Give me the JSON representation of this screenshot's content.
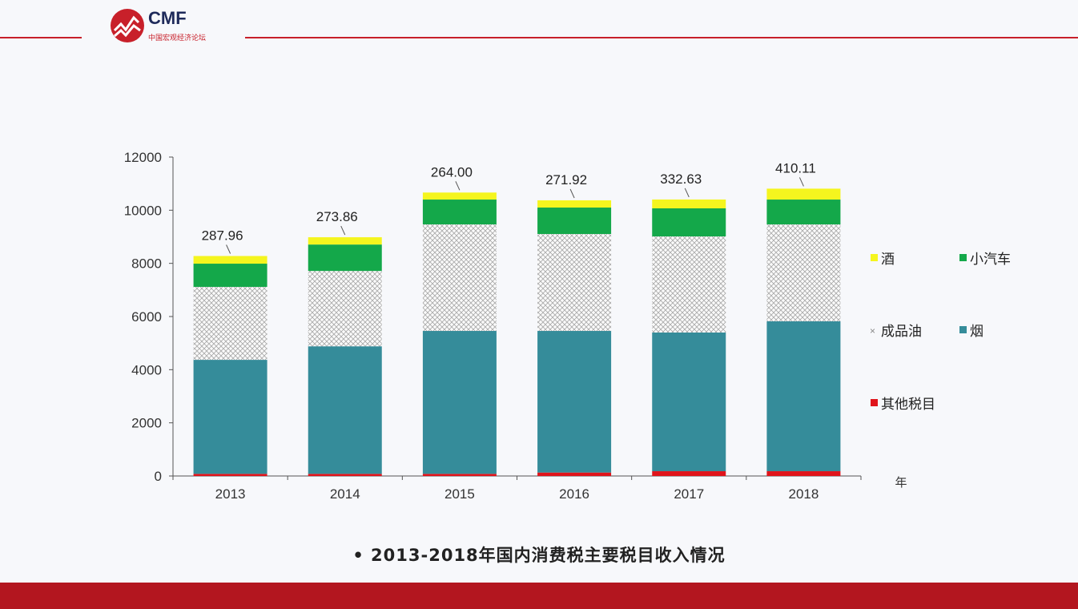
{
  "logo": {
    "text": "CMF",
    "subtitle": "中国宏观经济论坛"
  },
  "caption": "• 2013-2018年国内消费税主要税目收入情况",
  "chart_data": {
    "type": "bar",
    "stacked": true,
    "categories": [
      "2013",
      "2014",
      "2015",
      "2016",
      "2017",
      "2018"
    ],
    "xlabel": "年",
    "ylim": [
      0,
      12000
    ],
    "yticks": [
      0,
      2000,
      4000,
      6000,
      8000,
      10000,
      12000
    ],
    "grid": false,
    "legend_position": "right",
    "series": [
      {
        "name": "其他税目",
        "color": "#e0141b",
        "values": [
          80,
          80,
          80,
          130,
          180,
          180
        ]
      },
      {
        "name": "烟",
        "color": "#358c9a",
        "values": [
          4290,
          4800,
          5377,
          5327,
          5217,
          5639
        ]
      },
      {
        "name": "成品油",
        "color": "#c8c8c8",
        "pattern": "crosshatch",
        "values": [
          2745,
          2834,
          4009,
          3648,
          3617,
          3647
        ]
      },
      {
        "name": "小汽车",
        "color": "#14a84a",
        "values": [
          874,
          995,
          935,
          995,
          1056,
          935
        ]
      },
      {
        "name": "酒",
        "color": "#f5f51e",
        "values": [
          287.96,
          273.86,
          264.0,
          271.92,
          332.63,
          410.11
        ]
      }
    ],
    "data_labels": [
      "287.96",
      "273.86",
      "264.00",
      "271.92",
      "332.63",
      "410.11"
    ]
  }
}
